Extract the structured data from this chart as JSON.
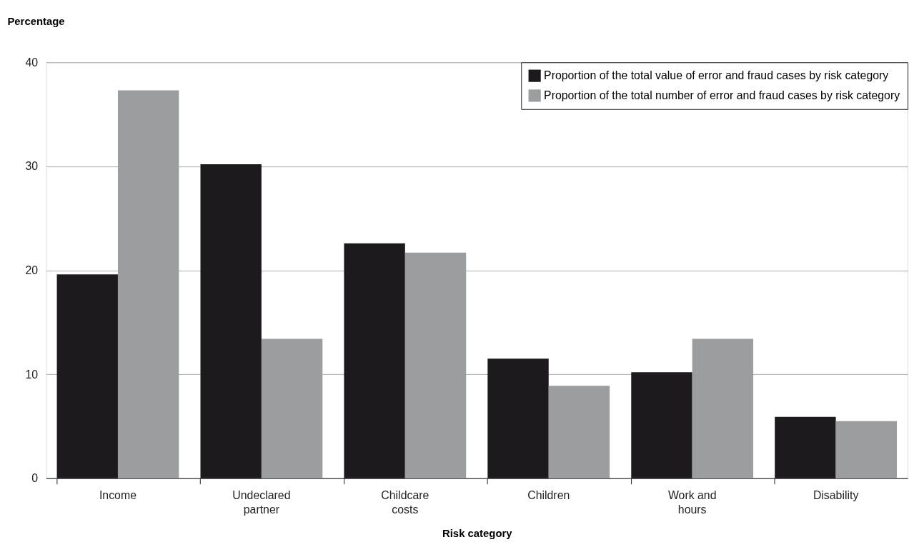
{
  "chart_data": {
    "type": "bar",
    "xlabel": "Risk category",
    "ylabel": "Percentage",
    "categories": [
      "Income",
      "Undeclared partner",
      "Childcare costs",
      "Children",
      "Work and hours",
      "Disability"
    ],
    "series": [
      {
        "name": "Proportion of the total value of error and fraud cases by risk category",
        "color": "#1c1a1d",
        "values": [
          19.6,
          30.2,
          22.6,
          11.5,
          10.2,
          5.9
        ]
      },
      {
        "name": "Proportion of the total number of error and fraud cases by risk category",
        "color": "#9c9d9f",
        "values": [
          37.3,
          13.4,
          21.7,
          8.9,
          13.4,
          5.5
        ]
      }
    ],
    "ylim": [
      0,
      40
    ],
    "yticks": [
      0,
      10,
      20,
      30,
      40
    ],
    "grid": "y",
    "legend": "top right"
  }
}
